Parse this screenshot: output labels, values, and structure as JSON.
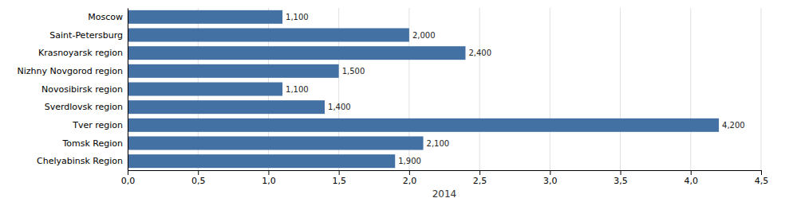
{
  "chart_data": {
    "type": "bar",
    "orientation": "horizontal",
    "categories": [
      "Chelyabinsk Region",
      "Tomsk Region",
      "Tver region",
      "Sverdlovsk region",
      "Novosibirsk region",
      "Nizhny Novgorod region",
      "Krasnoyarsk region",
      "Saint-Petersburg",
      "Moscow"
    ],
    "values": [
      1.9,
      2.1,
      4.2,
      1.4,
      1.1,
      1.5,
      2.4,
      2.0,
      1.1
    ],
    "value_labels": [
      "1,900",
      "2,100",
      "4,200",
      "1,400",
      "1,100",
      "1,500",
      "2,400",
      "2,000",
      "1,100"
    ],
    "data_labels": true,
    "color": "#4471a4",
    "xlabel": "2014",
    "xlim": [
      0,
      4.5
    ],
    "xticks": [
      {
        "value": 0.0,
        "label": "0,0"
      },
      {
        "value": 0.5,
        "label": "0,5"
      },
      {
        "value": 1.0,
        "label": "1,0"
      },
      {
        "value": 1.5,
        "label": "1,5"
      },
      {
        "value": 2.0,
        "label": "2,0"
      },
      {
        "value": 2.5,
        "label": "2,5"
      },
      {
        "value": 3.0,
        "label": "3,0"
      },
      {
        "value": 3.5,
        "label": "3,5"
      },
      {
        "value": 4.0,
        "label": "4,0"
      },
      {
        "value": 4.5,
        "label": "4,5"
      }
    ],
    "grid": true
  }
}
